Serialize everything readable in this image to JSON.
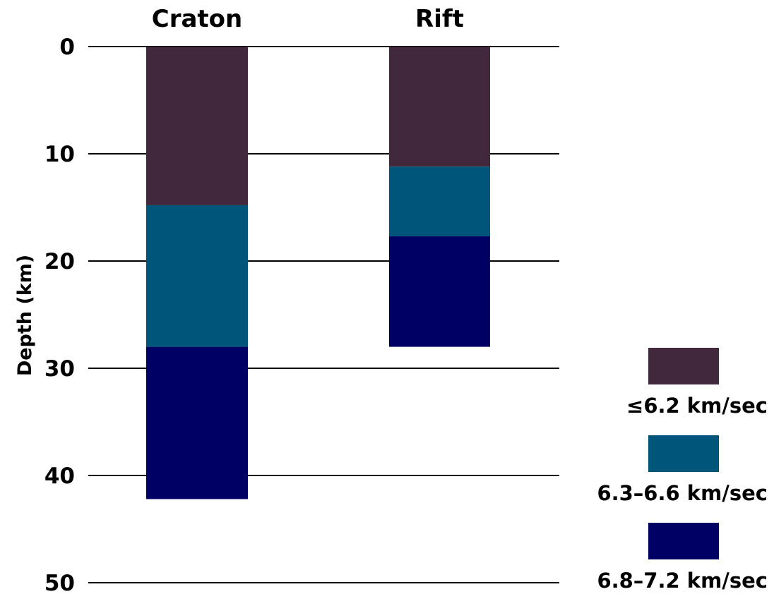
{
  "chart_data": {
    "type": "bar",
    "categories": [
      "Craton",
      "Rift"
    ],
    "ylabel": "Depth (km)",
    "ylim": [
      0,
      50
    ],
    "y_inverted": true,
    "yticks": [
      0,
      10,
      20,
      30,
      40,
      50
    ],
    "grid": "horizontal",
    "legend_position": "bottom-right",
    "legend": [
      {
        "label": "≤6.2 km/sec",
        "color": "#42283c"
      },
      {
        "label": "6.3–6.6 km/sec",
        "color": "#00567a"
      },
      {
        "label": "6.8–7.2 km/sec",
        "color": "#000064"
      }
    ],
    "columns": [
      {
        "name": "Craton",
        "layers": [
          {
            "legend_index": 0,
            "top": 0,
            "bottom": 14.8
          },
          {
            "legend_index": 1,
            "top": 14.8,
            "bottom": 28.0
          },
          {
            "legend_index": 2,
            "top": 28.0,
            "bottom": 42.2
          }
        ]
      },
      {
        "name": "Rift",
        "layers": [
          {
            "legend_index": 0,
            "top": 0,
            "bottom": 11.2
          },
          {
            "legend_index": 1,
            "top": 11.2,
            "bottom": 17.7
          },
          {
            "legend_index": 2,
            "top": 17.7,
            "bottom": 28.0
          }
        ]
      }
    ]
  }
}
